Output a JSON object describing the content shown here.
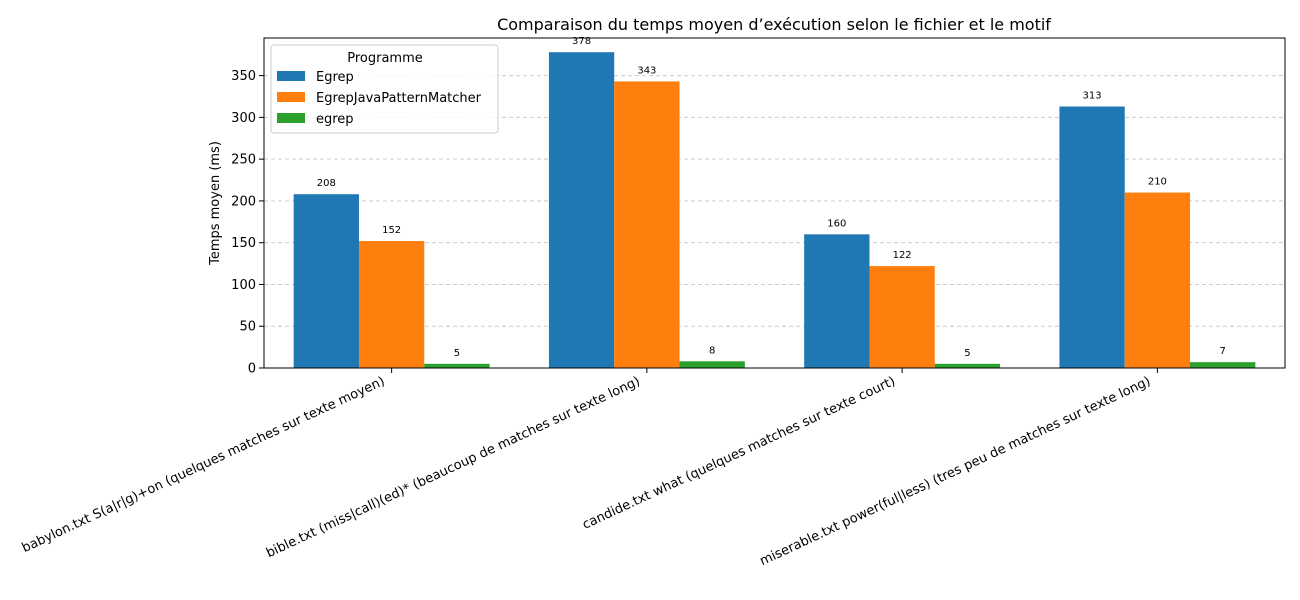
{
  "chart_data": {
    "type": "bar",
    "title": "Comparaison du temps moyen d’exécution selon le fichier et le motif",
    "xlabel": "",
    "ylabel": "Temps moyen (ms)",
    "ylim": [
      0,
      395
    ],
    "yticks": [
      0,
      50,
      100,
      150,
      200,
      250,
      300,
      350
    ],
    "grid": "y-dashed",
    "legend": {
      "title": "Programme",
      "placement": "top-left"
    },
    "categories": [
      "babylon.txt S(a|r|g)+on (quelques matches sur texte moyen)",
      "bible.txt (miss|call)(ed)* (beaucoup de matches sur texte long)",
      "candide.txt what (quelques matches sur texte court)",
      "miserable.txt power(ful|less) (tres peu de matches sur texte long)"
    ],
    "series": [
      {
        "name": "Egrep",
        "color": "#1f77b4",
        "values": [
          208,
          378,
          160,
          313
        ]
      },
      {
        "name": "EgrepJavaPatternMatcher",
        "color": "#ff7f0e",
        "values": [
          152,
          343,
          122,
          210
        ]
      },
      {
        "name": "egrep",
        "color": "#2ca02c",
        "values": [
          5,
          8,
          5,
          7
        ]
      }
    ]
  }
}
